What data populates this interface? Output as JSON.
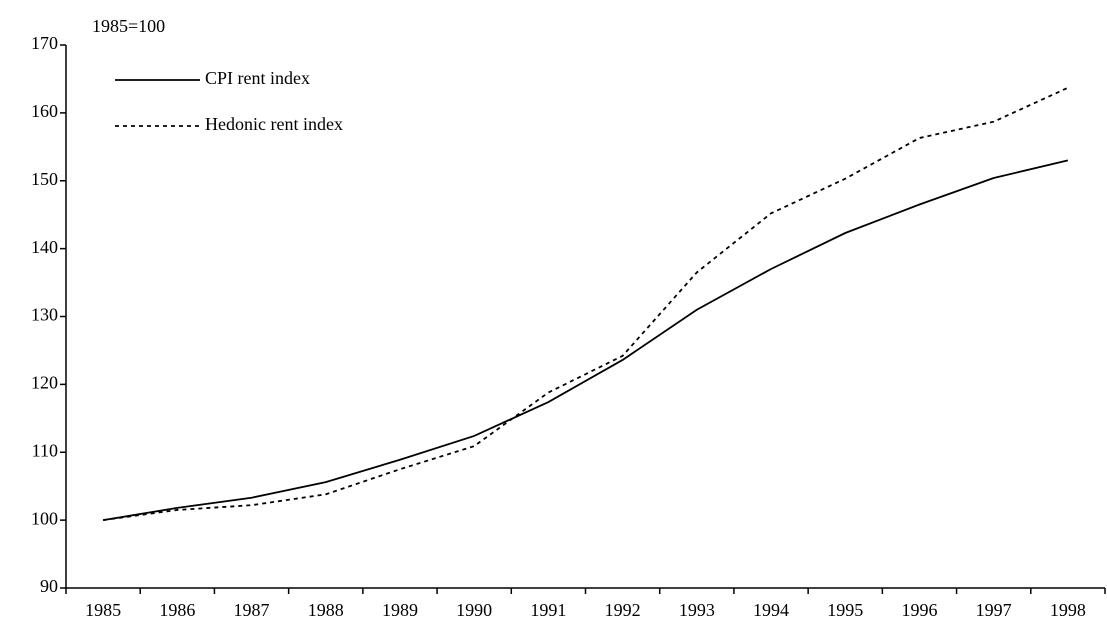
{
  "chart_data": {
    "type": "line",
    "y_label": "1985=100",
    "categories": [
      "1985",
      "1986",
      "1987",
      "1988",
      "1989",
      "1990",
      "1991",
      "1992",
      "1993",
      "1994",
      "1995",
      "1996",
      "1997",
      "1998"
    ],
    "series": [
      {
        "name": "CPI rent index",
        "color": "#000000",
        "style": "solid",
        "values": [
          100,
          101.8,
          103.3,
          105.6,
          108.9,
          112.4,
          117.4,
          123.6,
          131.0,
          137.0,
          142.3,
          146.5,
          150.4,
          153.0
        ]
      },
      {
        "name": "Hedonic rent index",
        "color": "#000000",
        "style": "dotted",
        "values": [
          100,
          101.5,
          102.2,
          103.8,
          107.5,
          110.9,
          118.8,
          124.2,
          136.5,
          145.2,
          150.3,
          156.3,
          158.7,
          163.7
        ]
      }
    ],
    "ylim": [
      90,
      170
    ],
    "yticks": [
      90,
      100,
      110,
      120,
      130,
      140,
      150,
      160,
      170
    ],
    "grid": false,
    "legend": "upper left"
  }
}
